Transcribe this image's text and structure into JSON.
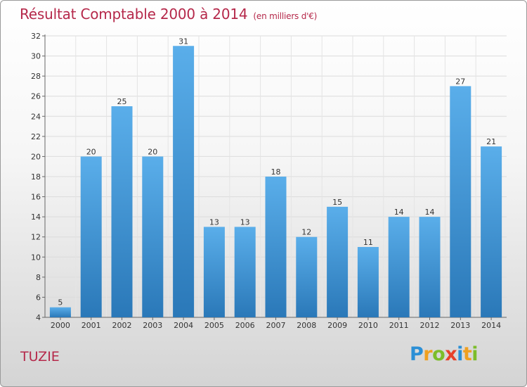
{
  "header": {
    "title": "Résultat Comptable 2000 à 2014",
    "subtitle": "(en milliers d'€)"
  },
  "footer": {
    "commune": "TUZIE",
    "logo_letters": [
      {
        "ch": "P",
        "color": "#2b8fd6"
      },
      {
        "ch": "r",
        "color": "#f0a020"
      },
      {
        "ch": "o",
        "color": "#7cbd2a"
      },
      {
        "ch": "x",
        "color": "#e8412a"
      },
      {
        "ch": "i",
        "color": "#2b8fd6"
      },
      {
        "ch": "t",
        "color": "#f0a020"
      },
      {
        "ch": "i",
        "color": "#7cbd2a"
      }
    ]
  },
  "chart_data": {
    "type": "bar",
    "categories": [
      "2000",
      "2001",
      "2002",
      "2003",
      "2004",
      "2005",
      "2006",
      "2007",
      "2008",
      "2009",
      "2010",
      "2011",
      "2012",
      "2013",
      "2014"
    ],
    "values": [
      5,
      20,
      25,
      20,
      31,
      13,
      13,
      18,
      12,
      15,
      11,
      14,
      14,
      27,
      21
    ],
    "ylim": [
      4,
      32
    ],
    "yticks": [
      4,
      6,
      8,
      10,
      12,
      14,
      16,
      18,
      20,
      22,
      24,
      26,
      28,
      30,
      32
    ],
    "grid": true,
    "bar_color_top": "#5aaeea",
    "bar_color_bottom": "#2a78b8",
    "title_color": "#b5284a"
  }
}
